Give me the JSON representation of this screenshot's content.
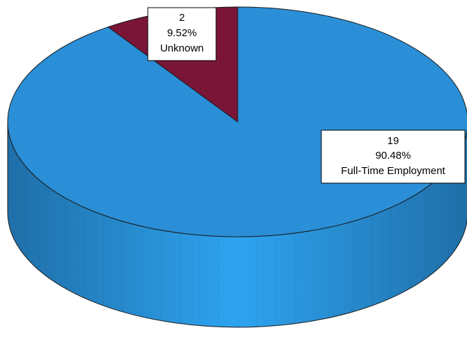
{
  "chart_data": {
    "type": "pie",
    "style": "3d",
    "slices": [
      {
        "label": "Unknown",
        "count": 2,
        "percent": "9.52%",
        "color": "#7a1538"
      },
      {
        "label": "Full-Time Employment",
        "count": 19,
        "percent": "90.48%",
        "color": "#2a8fd6"
      }
    ],
    "side_color_center": "#2ea3f0",
    "side_color_edge": "#1f6fa8",
    "edge_color": "#1a1a1a"
  }
}
